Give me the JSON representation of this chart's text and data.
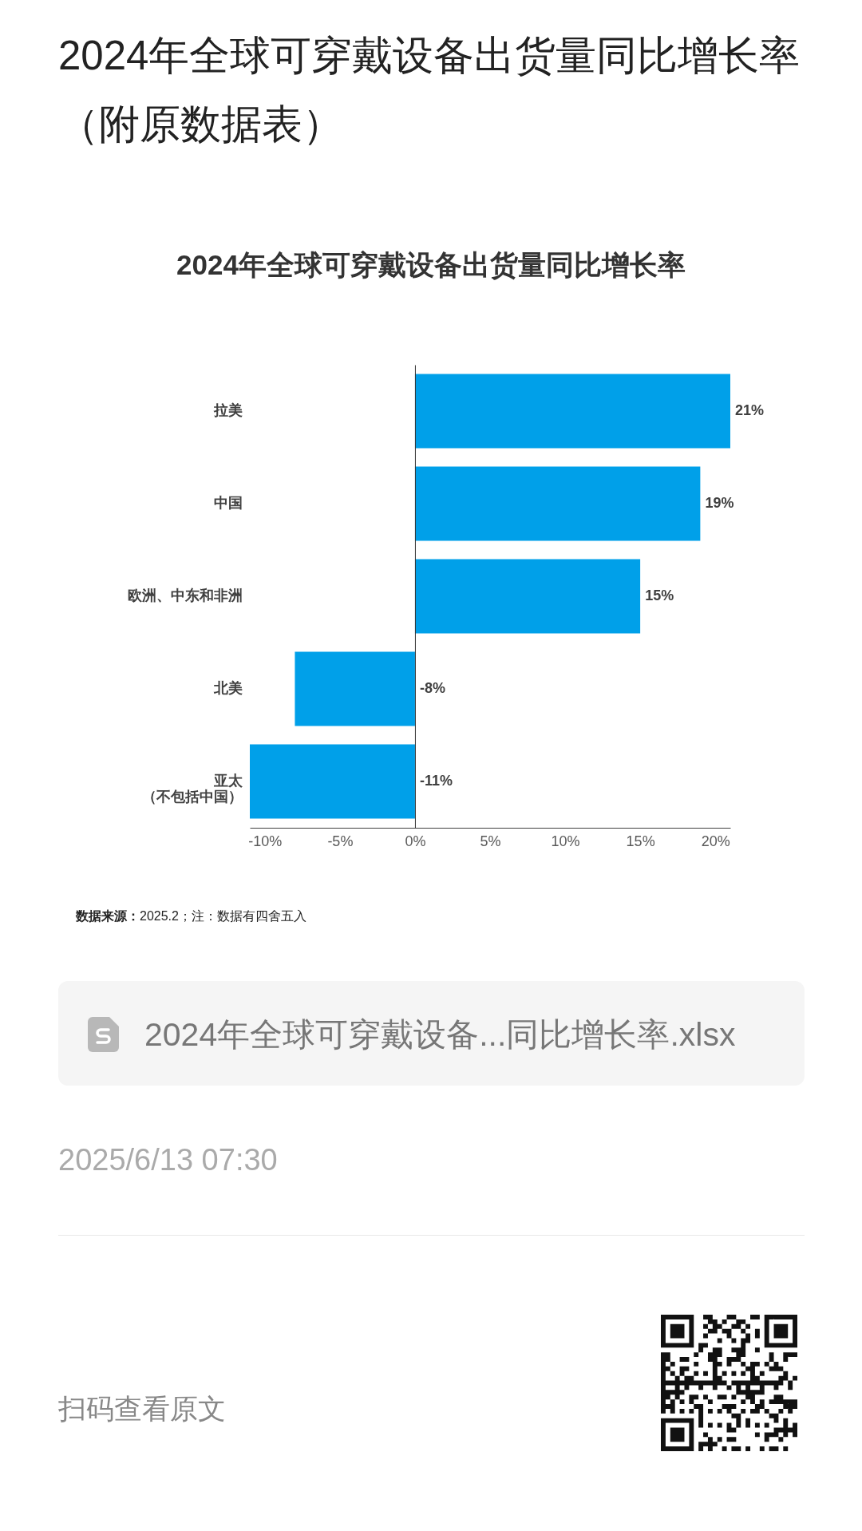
{
  "chart_data": {
    "type": "bar",
    "orientation": "horizontal",
    "title": "2024年全球可穿戴设备出货量同比增长率",
    "categories": [
      "拉美",
      "中国",
      "欧洲、中东和非洲",
      "北美",
      "亚太（不包括中国）"
    ],
    "values": [
      21,
      19,
      15,
      -8,
      -11
    ],
    "color": "#00a0e9",
    "value_labels": [
      "21%",
      "19%",
      "15%",
      "-8%",
      "-11%"
    ],
    "xlim": [
      -11,
      21
    ],
    "xticks": [
      {
        "value": -10,
        "label": "-10%"
      },
      {
        "value": -5,
        "label": "-5%"
      },
      {
        "value": 0,
        "label": "0%"
      },
      {
        "value": 5,
        "label": "5%"
      },
      {
        "value": 10,
        "label": "10%"
      },
      {
        "value": 15,
        "label": "15%"
      },
      {
        "value": 20,
        "label": "20%"
      }
    ],
    "annotations": [
      "2024年全球可穿戴设备出货量同比增长率（附原数据表）",
      "数据来源：2025.2；注：数据有四舍五入",
      "2024年全球可穿戴设备...同比增长率.xlsx",
      "2025/6/13 07:30",
      "扫码查看原文"
    ]
  }
}
